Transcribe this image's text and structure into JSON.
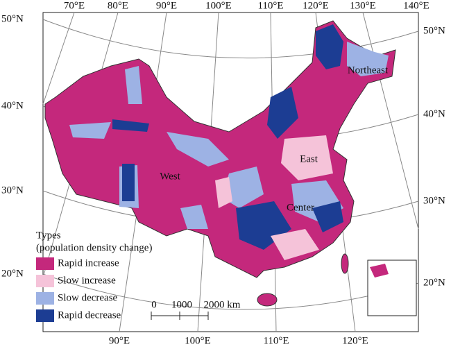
{
  "map": {
    "top_longitude_labels": [
      "70°E",
      "80°E",
      "90°E",
      "100°E",
      "110°E",
      "120°E",
      "130°E",
      "140°E"
    ],
    "bottom_longitude_labels": [
      "90°E",
      "100°E",
      "110°E",
      "120°E"
    ],
    "left_latitude_labels": [
      "50°N",
      "40°N",
      "30°N",
      "20°N"
    ],
    "right_latitude_labels": [
      "50°N",
      "40°N",
      "30°N",
      "20°N"
    ],
    "region_labels": [
      "Northeast",
      "East",
      "West",
      "Center"
    ],
    "legend": {
      "title": "Types",
      "subtitle": "(population density change)",
      "items": [
        {
          "label": "Rapid increase",
          "color": "#c4287c"
        },
        {
          "label": "Slow increase",
          "color": "#f5c3d9"
        },
        {
          "label": "Slow decrease",
          "color": "#9db2e4"
        },
        {
          "label": "Rapid decrease",
          "color": "#1c3d93"
        }
      ]
    },
    "scale_bar": {
      "labels": [
        "0",
        "1000",
        "2000 km"
      ]
    }
  }
}
